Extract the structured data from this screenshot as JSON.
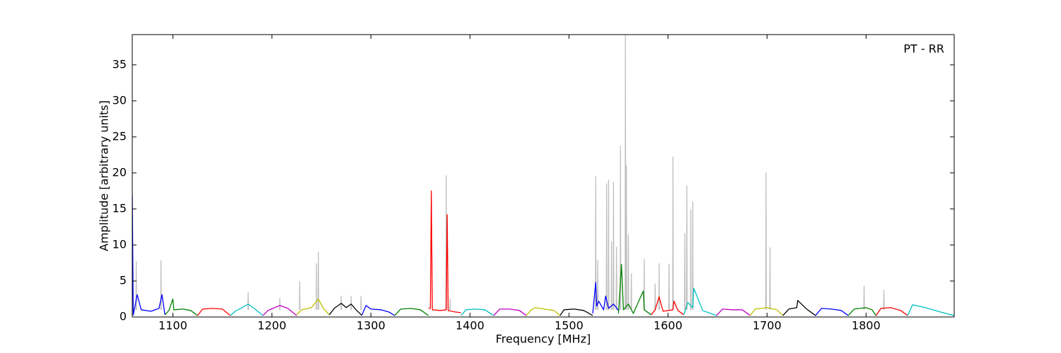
{
  "chart_data": {
    "type": "line",
    "annotation": "PT - RR",
    "x_label": "Frequency [MHz]",
    "y_label": "Amplitude [arbitrary units]",
    "xlim": [
      1059,
      1889
    ],
    "ylim": [
      0,
      39.2
    ],
    "xticks": [
      1100,
      1200,
      1300,
      1400,
      1500,
      1600,
      1700,
      1800
    ],
    "yticks": [
      0,
      5,
      10,
      15,
      20,
      25,
      30,
      35
    ],
    "grid": false,
    "series": [
      {
        "color": "#bfbfbf",
        "x": [
          1062.7,
          1063,
          1063.3,
          1063.3,
          1087.7,
          1088,
          1088.3,
          1088.3,
          1175.7,
          1176,
          1176.3,
          1176.3,
          1207.7,
          1208,
          1208.3,
          1208.3,
          1227.7,
          1228,
          1228.3,
          1228.3,
          1244.7,
          1245,
          1245.3,
          1245.3,
          1246.7,
          1247,
          1247.3,
          1247.3,
          1269.7,
          1270,
          1270.3,
          1270.3,
          1279.7,
          1280,
          1280.3,
          1280.3,
          1289.7,
          1290,
          1290.3,
          1290.3,
          1375.7,
          1376,
          1376.3,
          1376.3,
          1379.7,
          1380,
          1380.3,
          1380.3,
          1526.7,
          1527,
          1527.3,
          1527.3,
          1528.7,
          1529,
          1529.3,
          1529.3,
          1537.7,
          1538,
          1538.3,
          1538.3,
          1539.7,
          1540,
          1540.3,
          1540.3,
          1542.7,
          1543,
          1543.3,
          1543.3,
          1544.7,
          1545,
          1545.3,
          1545.3,
          1547.7,
          1548,
          1548.3,
          1548.3,
          1551.7,
          1552,
          1552.3,
          1552.3,
          1556.7,
          1557,
          1557.3,
          1557.3,
          1557.7,
          1558,
          1558.3,
          1558.3,
          1559.7,
          1560,
          1560.3,
          1560.3,
          1562.7,
          1563,
          1563.3,
          1563.3,
          1575.7,
          1576,
          1576.3,
          1576.3,
          1586.7,
          1587,
          1587.3,
          1587.3,
          1590.7,
          1591,
          1591.3,
          1591.3,
          1600.7,
          1601,
          1601.3,
          1601.3,
          1604.7,
          1605,
          1605.3,
          1605.3,
          1616.7,
          1617,
          1617.3,
          1617.3,
          1618.7,
          1619,
          1619.3,
          1619.3,
          1622.7,
          1623,
          1623.3,
          1623.3,
          1624.7,
          1625,
          1625.3,
          1625.3,
          1698.7,
          1699,
          1699.3,
          1699.3,
          1702.7,
          1703,
          1703.3,
          1703.3,
          1797.7,
          1798,
          1798.3,
          1798.3,
          1817.7,
          1818,
          1818.3
        ],
        "values": [
          1,
          7.7,
          1,
          null,
          1,
          7.8,
          1,
          null,
          1,
          3.4,
          1,
          null,
          1,
          2.6,
          1,
          null,
          1,
          4.9,
          1,
          null,
          1,
          7.4,
          1,
          null,
          1,
          9.0,
          1,
          null,
          1,
          2.9,
          1,
          null,
          1,
          2.9,
          1,
          null,
          1,
          2.9,
          1,
          null,
          1,
          19.6,
          1,
          null,
          1,
          2.5,
          1,
          null,
          1,
          19.5,
          1,
          null,
          1,
          7.8,
          1,
          null,
          1,
          18.5,
          1,
          null,
          1,
          19.0,
          1,
          null,
          1,
          10.4,
          1,
          null,
          1,
          18.7,
          1,
          null,
          1,
          9.7,
          1,
          null,
          1,
          23.7,
          1,
          null,
          1,
          39.2,
          1,
          null,
          1,
          21.0,
          1,
          null,
          1,
          11.4,
          1,
          null,
          1,
          6.0,
          1,
          null,
          1,
          8.0,
          1,
          null,
          1,
          4.6,
          1,
          null,
          1,
          7.4,
          1,
          null,
          1,
          7.3,
          1,
          null,
          1,
          22.2,
          1,
          null,
          1,
          11.6,
          1,
          null,
          1,
          18.2,
          1,
          null,
          1,
          14.9,
          1,
          null,
          1,
          16.0,
          1,
          null,
          1,
          20.0,
          1,
          null,
          1,
          9.6,
          1,
          null,
          1,
          4.3,
          1,
          null,
          1,
          3.7,
          1
        ]
      },
      {
        "color": "#0000ff",
        "x": [
          1059,
          1060,
          1064,
          1068,
          1078,
          1086,
          1089,
          1092
        ],
        "values": [
          17,
          0.3,
          3.1,
          1.0,
          0.8,
          1.2,
          3.1,
          0.3
        ]
      },
      {
        "color": "#008000",
        "x": [
          1092,
          1096,
          1100,
          1101,
          1110,
          1118,
          1125
        ],
        "values": [
          0.3,
          0.9,
          2.5,
          1.0,
          1.1,
          0.9,
          0.2
        ]
      },
      {
        "color": "#ff0000",
        "x": [
          1125,
          1130,
          1140,
          1150,
          1158
        ],
        "values": [
          0.2,
          1.1,
          1.2,
          1.1,
          0.2
        ]
      },
      {
        "color": "#00bfbf",
        "x": [
          1158,
          1163,
          1170,
          1176,
          1182,
          1191
        ],
        "values": [
          0.2,
          0.8,
          1.3,
          1.8,
          1.2,
          0.2
        ]
      },
      {
        "color": "#bf00bf",
        "x": [
          1191,
          1196,
          1208,
          1216,
          1225
        ],
        "values": [
          0.2,
          0.9,
          1.6,
          1.2,
          0.2
        ]
      },
      {
        "color": "#bfbf00",
        "x": [
          1225,
          1230,
          1240,
          1247,
          1252,
          1258
        ],
        "values": [
          0.3,
          1.0,
          1.3,
          2.5,
          1.2,
          0.3
        ]
      },
      {
        "color": "#000000",
        "x": [
          1258,
          1263,
          1270,
          1275,
          1280,
          1285,
          1291
        ],
        "values": [
          0.3,
          1.2,
          1.9,
          1.3,
          1.8,
          1.0,
          0.2
        ]
      },
      {
        "color": "#0000ff",
        "x": [
          1291,
          1295,
          1300,
          1310,
          1318,
          1324
        ],
        "values": [
          0.3,
          1.6,
          1.1,
          1.0,
          0.7,
          0.2
        ]
      },
      {
        "color": "#008000",
        "x": [
          1324,
          1330,
          1340,
          1350,
          1358
        ],
        "values": [
          0.2,
          1.1,
          1.2,
          1.0,
          0.2
        ]
      },
      {
        "color": "#ff0000",
        "x": [
          1358,
          1360,
          1361,
          1362,
          1370,
          1376,
          1377,
          1378,
          1385,
          1391
        ],
        "values": [
          1.2,
          1.2,
          17.5,
          1.0,
          0.9,
          1.0,
          14.2,
          0.9,
          0.7,
          0.6
        ]
      },
      {
        "color": "#00bfbf",
        "x": [
          1391,
          1396,
          1405,
          1415,
          1424
        ],
        "values": [
          0.2,
          1.0,
          1.1,
          1.0,
          0.2
        ]
      },
      {
        "color": "#bf00bf",
        "x": [
          1424,
          1430,
          1440,
          1450,
          1457
        ],
        "values": [
          0.2,
          1.1,
          1.1,
          0.9,
          0.2
        ]
      },
      {
        "color": "#bfbf00",
        "x": [
          1457,
          1462,
          1466,
          1475,
          1485,
          1491
        ],
        "values": [
          0.2,
          1.0,
          1.3,
          1.1,
          0.9,
          0.2
        ]
      },
      {
        "color": "#000000",
        "x": [
          1491,
          1495,
          1505,
          1515,
          1524
        ],
        "values": [
          0.2,
          1.0,
          1.1,
          0.9,
          0.2
        ]
      },
      {
        "color": "#0000ff",
        "x": [
          1524,
          1527,
          1528,
          1530,
          1535,
          1537,
          1540,
          1545,
          1550
        ],
        "values": [
          0.5,
          4.8,
          1.5,
          2.2,
          1.0,
          2.9,
          1.2,
          1.8,
          0.9
        ]
      },
      {
        "color": "#008000",
        "x": [
          1550,
          1553,
          1555,
          1560,
          1565,
          1575,
          1576,
          1583
        ],
        "values": [
          0.5,
          7.3,
          1.0,
          1.8,
          0.5,
          3.6,
          1.0,
          0.3
        ]
      },
      {
        "color": "#ff0000",
        "x": [
          1583,
          1587,
          1591,
          1595,
          1605,
          1606,
          1610,
          1616
        ],
        "values": [
          0.3,
          1.0,
          2.8,
          0.8,
          1.0,
          2.2,
          0.9,
          0.3
        ]
      },
      {
        "color": "#00bfbf",
        "x": [
          1616,
          1620,
          1625,
          1626,
          1635,
          1649
        ],
        "values": [
          0.3,
          2.0,
          1.3,
          4.0,
          0.9,
          0.2
        ]
      },
      {
        "color": "#bf00bf",
        "x": [
          1649,
          1655,
          1665,
          1675,
          1683
        ],
        "values": [
          0.2,
          1.1,
          1.0,
          1.0,
          0.2
        ]
      },
      {
        "color": "#bfbf00",
        "x": [
          1683,
          1688,
          1700,
          1710,
          1716
        ],
        "values": [
          0.2,
          1.1,
          1.3,
          1.0,
          0.2
        ]
      },
      {
        "color": "#000000",
        "x": [
          1716,
          1722,
          1730,
          1731,
          1740,
          1749
        ],
        "values": [
          0.2,
          1.1,
          1.3,
          2.3,
          1.1,
          0.2
        ]
      },
      {
        "color": "#0000ff",
        "x": [
          1749,
          1755,
          1765,
          1775,
          1782
        ],
        "values": [
          0.2,
          1.2,
          1.1,
          0.9,
          0.2
        ]
      },
      {
        "color": "#008000",
        "x": [
          1782,
          1788,
          1800,
          1806,
          1810
        ],
        "values": [
          0.2,
          1.1,
          1.3,
          1.0,
          0.2
        ]
      },
      {
        "color": "#ff0000",
        "x": [
          1810,
          1815,
          1825,
          1835,
          1842
        ],
        "values": [
          0.2,
          1.2,
          1.3,
          0.9,
          0.2
        ]
      },
      {
        "color": "#00bfbf",
        "x": [
          1842,
          1847,
          1860,
          1875,
          1889
        ],
        "values": [
          0.2,
          1.7,
          1.3,
          0.7,
          0.2
        ]
      }
    ]
  }
}
